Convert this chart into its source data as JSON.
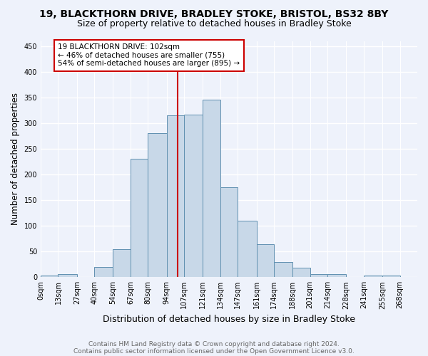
{
  "title1": "19, BLACKTHORN DRIVE, BRADLEY STOKE, BRISTOL, BS32 8BY",
  "title2": "Size of property relative to detached houses in Bradley Stoke",
  "xlabel": "Distribution of detached houses by size in Bradley Stoke",
  "ylabel": "Number of detached properties",
  "footnote1": "Contains HM Land Registry data © Crown copyright and database right 2024.",
  "footnote2": "Contains public sector information licensed under the Open Government Licence v3.0.",
  "bin_labels": [
    "0sqm",
    "13sqm",
    "27sqm",
    "40sqm",
    "54sqm",
    "67sqm",
    "80sqm",
    "94sqm",
    "107sqm",
    "121sqm",
    "134sqm",
    "147sqm",
    "161sqm",
    "174sqm",
    "188sqm",
    "201sqm",
    "214sqm",
    "228sqm",
    "241sqm",
    "255sqm",
    "268sqm"
  ],
  "bin_edges": [
    0,
    13,
    27,
    40,
    54,
    67,
    80,
    94,
    107,
    121,
    134,
    147,
    161,
    174,
    188,
    201,
    214,
    228,
    241,
    255,
    268
  ],
  "bar_heights": [
    3,
    6,
    0,
    20,
    55,
    230,
    280,
    315,
    316,
    345,
    175,
    110,
    64,
    30,
    18,
    6,
    6,
    0,
    3,
    3
  ],
  "bar_color": "#c8d8e8",
  "bar_edge_color": "#6090b0",
  "property_value": 102,
  "marker_line_color": "#cc0000",
  "annotation_text": "19 BLACKTHORN DRIVE: 102sqm\n← 46% of detached houses are smaller (755)\n54% of semi-detached houses are larger (895) →",
  "annotation_box_color": "#ffffff",
  "annotation_box_edge_color": "#cc0000",
  "ylim": [
    0,
    460
  ],
  "yticks": [
    0,
    50,
    100,
    150,
    200,
    250,
    300,
    350,
    400,
    450
  ],
  "background_color": "#eef2fb",
  "grid_color": "#ffffff",
  "title1_fontsize": 10,
  "title2_fontsize": 9,
  "xlabel_fontsize": 9,
  "ylabel_fontsize": 8.5,
  "tick_fontsize": 7,
  "annotation_fontsize": 7.5,
  "footnote_fontsize": 6.5
}
